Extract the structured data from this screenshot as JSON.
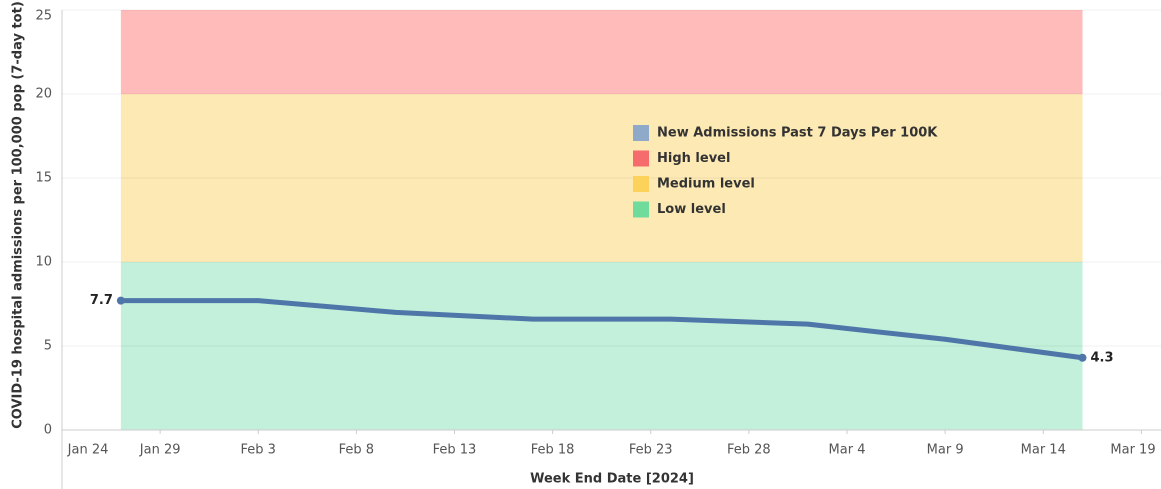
{
  "chart_data": {
    "type": "line",
    "ylabel": "COVID-19 hospital admissions per 100,000 pop (7-day tot)",
    "xlabel": "Week End Date [2024]",
    "x": [
      "2024-01-27",
      "2024-02-03",
      "2024-02-10",
      "2024-02-17",
      "2024-02-24",
      "2024-03-02",
      "2024-03-09",
      "2024-03-16"
    ],
    "series": [
      {
        "name": "New Admissions Past 7 Days Per 100K",
        "color": "#4f76a8",
        "legend_color": "#8fa9c8",
        "values": [
          7.7,
          7.7,
          7.0,
          6.6,
          6.6,
          6.3,
          5.4,
          4.3
        ],
        "value_labels": [
          "7.7",
          null,
          null,
          null,
          null,
          null,
          null,
          "4.3"
        ]
      }
    ],
    "bands": [
      {
        "name": "High level",
        "color": "#ffbaba",
        "legend_color": "#f66b6b",
        "range": [
          20,
          25
        ]
      },
      {
        "name": "Medium level",
        "color": "#fde9b3",
        "legend_color": "#fdd25a",
        "range": [
          10,
          20
        ]
      },
      {
        "name": "Low level",
        "color": "#c3f0da",
        "legend_color": "#6fdc9c",
        "range": [
          0,
          10
        ]
      }
    ],
    "xlim": [
      "2024-01-24",
      "2024-03-20"
    ],
    "xticks": [
      {
        "value": "2024-01-24",
        "label": "Jan 24"
      },
      {
        "value": "2024-01-29",
        "label": "Jan 29"
      },
      {
        "value": "2024-02-03",
        "label": "Feb 3"
      },
      {
        "value": "2024-02-08",
        "label": "Feb 8"
      },
      {
        "value": "2024-02-13",
        "label": "Feb 13"
      },
      {
        "value": "2024-02-18",
        "label": "Feb 18"
      },
      {
        "value": "2024-02-23",
        "label": "Feb 23"
      },
      {
        "value": "2024-02-28",
        "label": "Feb 28"
      },
      {
        "value": "2024-03-04",
        "label": "Mar 4"
      },
      {
        "value": "2024-03-09",
        "label": "Mar 9"
      },
      {
        "value": "2024-03-14",
        "label": "Mar 14"
      },
      {
        "value": "2024-03-19",
        "label": "Mar 19"
      }
    ],
    "ylim": [
      0,
      25
    ],
    "yticks": [
      0,
      5,
      10,
      15,
      20,
      25
    ],
    "grid": true
  }
}
